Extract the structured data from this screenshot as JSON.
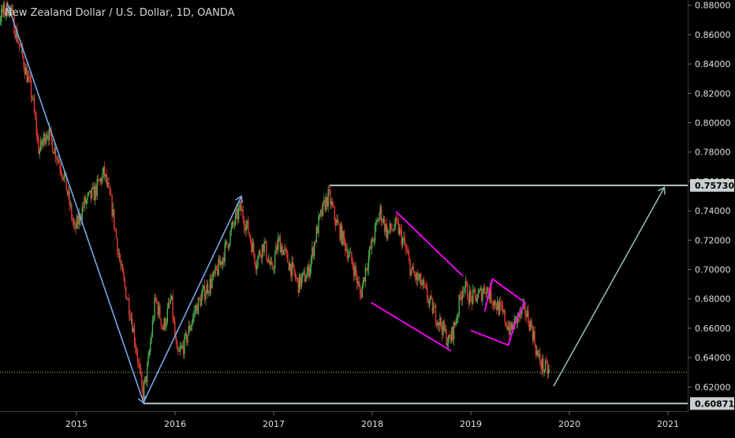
{
  "title": "New Zealand Dollar / U.S. Dollar, 1D, OANDA",
  "chart_data": {
    "type": "candlestick",
    "ylim": [
      0.6035,
      0.8836
    ],
    "xlim": [
      2014.0,
      2021.3
    ],
    "y_ticks": [
      "0.62000",
      "0.64000",
      "0.66000",
      "0.68000",
      "0.70000",
      "0.72000",
      "0.74000",
      "0.76000",
      "0.78000",
      "0.80000",
      "0.82000",
      "0.84000",
      "0.86000",
      "0.88000"
    ],
    "x_ticks": [
      "2015",
      "2016",
      "2017",
      "2018",
      "2019",
      "2020",
      "2021"
    ],
    "price_labels": [
      "0.75730",
      "0.60871"
    ],
    "price_path": [
      [
        2014.0,
        0.866
      ],
      [
        2014.12,
        0.858
      ],
      [
        2014.25,
        0.875
      ],
      [
        2014.32,
        0.879
      ],
      [
        2014.45,
        0.845
      ],
      [
        2014.55,
        0.818
      ],
      [
        2014.62,
        0.78
      ],
      [
        2014.7,
        0.795
      ],
      [
        2014.8,
        0.778
      ],
      [
        2014.88,
        0.762
      ],
      [
        2014.98,
        0.726
      ],
      [
        2015.08,
        0.745
      ],
      [
        2015.18,
        0.752
      ],
      [
        2015.28,
        0.766
      ],
      [
        2015.36,
        0.742
      ],
      [
        2015.45,
        0.7
      ],
      [
        2015.55,
        0.67
      ],
      [
        2015.62,
        0.64
      ],
      [
        2015.67,
        0.614
      ],
      [
        2015.72,
        0.632
      ],
      [
        2015.8,
        0.68
      ],
      [
        2015.88,
        0.66
      ],
      [
        2015.96,
        0.68
      ],
      [
        2016.02,
        0.64
      ],
      [
        2016.1,
        0.65
      ],
      [
        2016.2,
        0.672
      ],
      [
        2016.3,
        0.685
      ],
      [
        2016.4,
        0.695
      ],
      [
        2016.48,
        0.708
      ],
      [
        2016.58,
        0.728
      ],
      [
        2016.66,
        0.742
      ],
      [
        2016.75,
        0.725
      ],
      [
        2016.82,
        0.705
      ],
      [
        2016.9,
        0.718
      ],
      [
        2016.98,
        0.698
      ],
      [
        2017.05,
        0.72
      ],
      [
        2017.15,
        0.705
      ],
      [
        2017.25,
        0.69
      ],
      [
        2017.35,
        0.698
      ],
      [
        2017.45,
        0.73
      ],
      [
        2017.52,
        0.745
      ],
      [
        2017.56,
        0.75
      ],
      [
        2017.62,
        0.735
      ],
      [
        2017.72,
        0.718
      ],
      [
        2017.82,
        0.7
      ],
      [
        2017.88,
        0.682
      ],
      [
        2017.93,
        0.7
      ],
      [
        2018.0,
        0.718
      ],
      [
        2018.08,
        0.74
      ],
      [
        2018.15,
        0.725
      ],
      [
        2018.25,
        0.73
      ],
      [
        2018.32,
        0.718
      ],
      [
        2018.4,
        0.698
      ],
      [
        2018.5,
        0.69
      ],
      [
        2018.6,
        0.675
      ],
      [
        2018.7,
        0.662
      ],
      [
        2018.78,
        0.65
      ],
      [
        2018.84,
        0.663
      ],
      [
        2018.92,
        0.69
      ],
      [
        2019.0,
        0.68
      ],
      [
        2019.08,
        0.682
      ],
      [
        2019.15,
        0.688
      ],
      [
        2019.22,
        0.68
      ],
      [
        2019.32,
        0.67
      ],
      [
        2019.4,
        0.658
      ],
      [
        2019.48,
        0.668
      ],
      [
        2019.55,
        0.672
      ],
      [
        2019.62,
        0.66
      ],
      [
        2019.68,
        0.64
      ],
      [
        2019.74,
        0.633
      ],
      [
        2019.8,
        0.63
      ]
    ]
  },
  "colors": {
    "background": "#000000",
    "candle_up": "#4caf50",
    "candle_down": "#e53935",
    "blue_lines": "#7aa6e6",
    "magenta_lines": "#ff00ff",
    "grey_lines": "#b7c6c4",
    "target_arrow": "#8fb8b0",
    "current_price_line": "#b6cc66",
    "axis_border": "#3a3a3a",
    "tick_text": "#e0e0e0",
    "label_bg": "#c9ced0",
    "label_text": "#000000"
  }
}
